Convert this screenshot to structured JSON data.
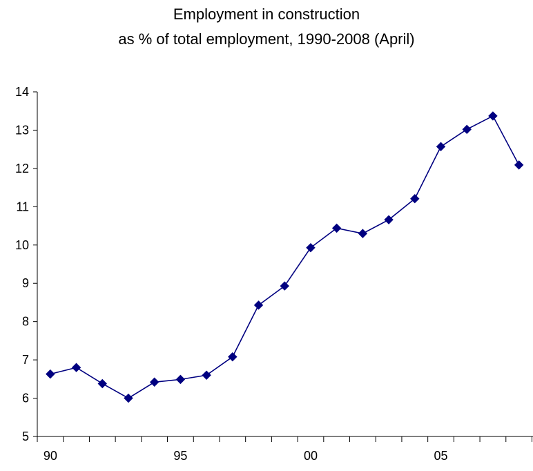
{
  "chart_data": {
    "type": "line",
    "title_lines": [
      "Employment in construction",
      "as % of total employment, 1990-2008 (April)"
    ],
    "xlabel": "",
    "ylabel": "",
    "x": [
      1990,
      1991,
      1992,
      1993,
      1994,
      1995,
      1996,
      1997,
      1998,
      1999,
      2000,
      2001,
      2002,
      2003,
      2004,
      2005,
      2006,
      2007,
      2008
    ],
    "series": [
      {
        "values": [
          6.63,
          6.8,
          6.38,
          6.0,
          6.42,
          6.49,
          6.6,
          7.08,
          8.43,
          8.93,
          9.93,
          10.44,
          10.3,
          10.66,
          11.21,
          12.57,
          13.02,
          13.37,
          12.09
        ],
        "color": "#000080",
        "marker": "diamond"
      }
    ],
    "ylim": [
      5,
      14
    ],
    "yticks": [
      "5",
      "6",
      "7",
      "8",
      "9",
      "10",
      "11",
      "12",
      "13",
      "14"
    ],
    "xtick_labels": [
      {
        "x": 1990,
        "label": "90"
      },
      {
        "x": 1995,
        "label": "95"
      },
      {
        "x": 2000,
        "label": "00"
      },
      {
        "x": 2005,
        "label": "05"
      }
    ],
    "grid": false,
    "legend": "none"
  }
}
